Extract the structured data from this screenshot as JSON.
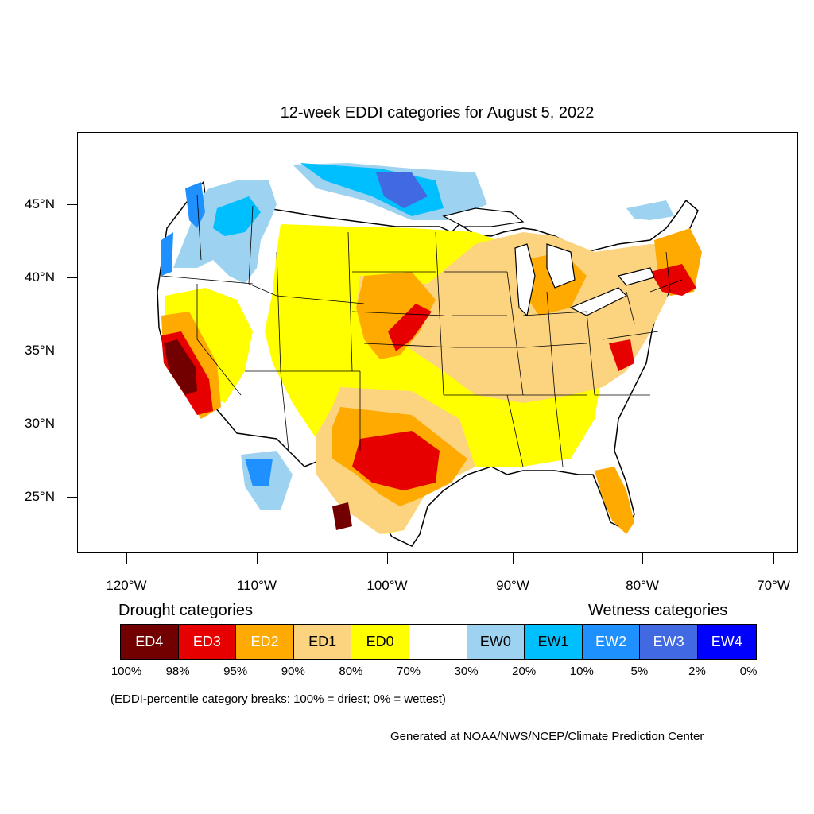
{
  "title": "12-week EDDI categories for August 5, 2022",
  "lat_labels": [
    "45°N",
    "40°N",
    "35°N",
    "30°N",
    "25°N"
  ],
  "lon_labels": [
    "120°W",
    "110°W",
    "100°W",
    "90°W",
    "80°W",
    "70°W"
  ],
  "legend": {
    "drought_heading": "Drought categories",
    "wetness_heading": "Wetness categories",
    "categories": [
      {
        "label": "ED4",
        "color": "#730000",
        "text_color": "#ffffff"
      },
      {
        "label": "ED3",
        "color": "#e60000",
        "text_color": "#ffffff"
      },
      {
        "label": "ED2",
        "color": "#ffaa00",
        "text_color": "#ffffff"
      },
      {
        "label": "ED1",
        "color": "#fcd37f",
        "text_color": "#000000"
      },
      {
        "label": "ED0",
        "color": "#ffff00",
        "text_color": "#000000"
      },
      {
        "label": "",
        "color": "#ffffff",
        "text_color": "#000000"
      },
      {
        "label": "EW0",
        "color": "#9dd2f0",
        "text_color": "#000000"
      },
      {
        "label": "EW1",
        "color": "#00bfff",
        "text_color": "#000000"
      },
      {
        "label": "EW2",
        "color": "#1e90ff",
        "text_color": "#ffffff"
      },
      {
        "label": "EW3",
        "color": "#4169e1",
        "text_color": "#ffffff"
      },
      {
        "label": "EW4",
        "color": "#0000ff",
        "text_color": "#ffffff"
      }
    ],
    "percentiles": [
      "100%",
      "98%",
      "95%",
      "90%",
      "80%",
      "70%",
      "30%",
      "20%",
      "10%",
      "5%",
      "2%",
      "0%"
    ]
  },
  "note": "(EDDI-percentile category breaks: 100% = driest; 0% = wettest)",
  "credit": "Generated at NOAA/NWS/NCEP/Climate Prediction Center"
}
